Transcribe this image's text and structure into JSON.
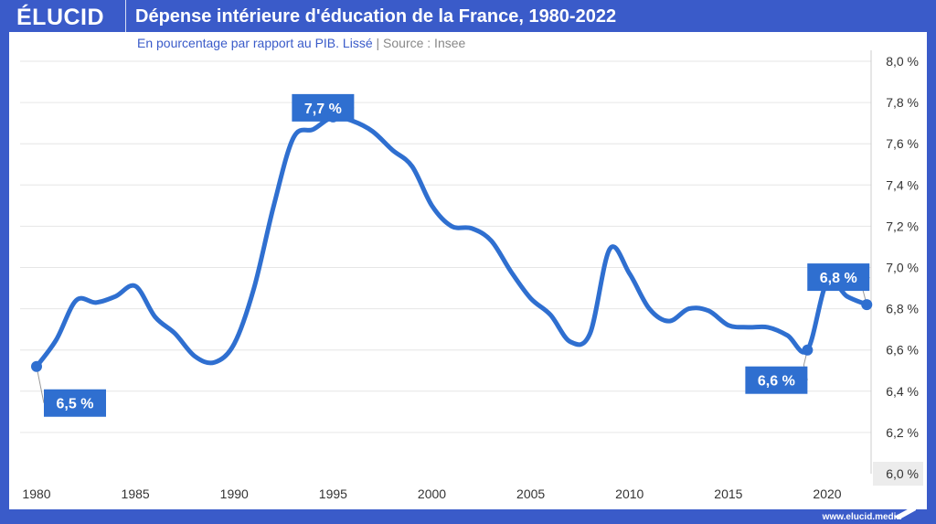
{
  "header": {
    "logo": "ÉLUCID",
    "title": "Dépense intérieure d'éducation de la France, 1980-2022",
    "subtitle": "En pourcentage par rapport au PIB. Lissé",
    "separator": "|",
    "source": "Source : Insee"
  },
  "footer": {
    "url": "www.elucid.media"
  },
  "colors": {
    "brand": "#3a5bc9",
    "line": "#2f6fd0",
    "callout": "#2f6fd0"
  },
  "chart_data": {
    "type": "line",
    "title": "Dépense intérieure d'éducation de la France, 1980-2022",
    "xlim": [
      1980,
      2022
    ],
    "ylim": [
      6.0,
      8.0
    ],
    "grid": "horizontal",
    "y_axis_side": "right",
    "x_ticks": [
      "1980",
      "1985",
      "1990",
      "1995",
      "2000",
      "2005",
      "2010",
      "2015",
      "2020"
    ],
    "y_ticks": [
      "6,0 %",
      "6,2 %",
      "6,4 %",
      "6,6 %",
      "6,8 %",
      "7,0 %",
      "7,2 %",
      "7,4 %",
      "7,6 %",
      "7,8 %",
      "8,0 %"
    ],
    "x": [
      1980,
      1981,
      1982,
      1983,
      1984,
      1985,
      1986,
      1987,
      1988,
      1989,
      1990,
      1991,
      1992,
      1993,
      1994,
      1995,
      1996,
      1997,
      1998,
      1999,
      2000,
      2001,
      2002,
      2003,
      2004,
      2005,
      2006,
      2007,
      2008,
      2009,
      2010,
      2011,
      2012,
      2013,
      2014,
      2015,
      2016,
      2017,
      2018,
      2019,
      2020,
      2021,
      2022
    ],
    "y": [
      6.52,
      6.65,
      6.84,
      6.83,
      6.86,
      6.91,
      6.76,
      6.68,
      6.57,
      6.54,
      6.63,
      6.9,
      7.3,
      7.63,
      7.67,
      7.73,
      7.71,
      7.66,
      7.57,
      7.49,
      7.3,
      7.2,
      7.19,
      7.13,
      6.98,
      6.85,
      6.77,
      6.64,
      6.68,
      7.09,
      6.97,
      6.8,
      6.74,
      6.8,
      6.79,
      6.72,
      6.71,
      6.71,
      6.67,
      6.6,
      6.93,
      6.86,
      6.82
    ],
    "annotations": [
      {
        "x": 1980,
        "y": 6.52,
        "label": "6,5 %"
      },
      {
        "x": 1995,
        "y": 7.73,
        "label": "7,7 %"
      },
      {
        "x": 2019,
        "y": 6.6,
        "label": "6,6 %"
      },
      {
        "x": 2022,
        "y": 6.82,
        "label": "6,8 %"
      }
    ]
  }
}
